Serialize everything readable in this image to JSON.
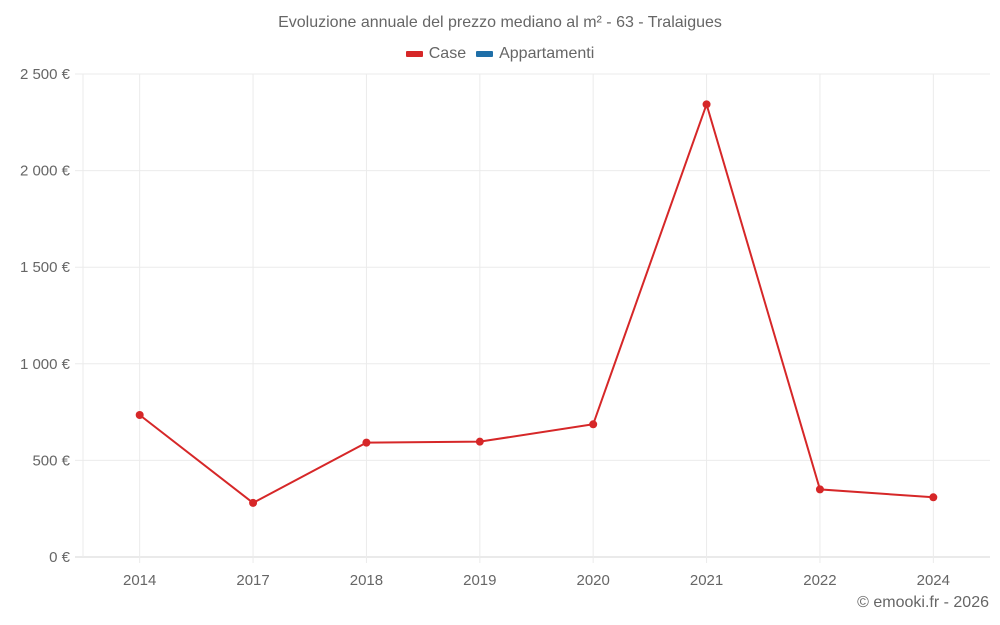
{
  "chart_data": {
    "type": "line",
    "title": "Evoluzione annuale del prezzo mediano al m² - 63 - Tralaigues",
    "categories": [
      "2014",
      "2017",
      "2018",
      "2019",
      "2020",
      "2021",
      "2022",
      "2024"
    ],
    "series": [
      {
        "name": "Case",
        "color": "#d62728",
        "values": [
          735,
          280,
          592,
          597,
          687,
          2343,
          350,
          309
        ]
      },
      {
        "name": "Appartamenti",
        "color": "#1f6fa8",
        "values": []
      }
    ],
    "xlabel": "",
    "ylabel": "",
    "ylim": [
      0,
      2500
    ],
    "yticks": [
      0,
      500,
      1000,
      1500,
      2000,
      2500
    ],
    "ytick_labels": [
      "0 €",
      "500 €",
      "1 000 €",
      "1 500 €",
      "2 000 €",
      "2 500 €"
    ],
    "grid": true,
    "legend_position": "top"
  },
  "title": "Evoluzione annuale del prezzo mediano al m² - 63 - Tralaigues",
  "legend": [
    {
      "label": "Case",
      "color": "#d62728"
    },
    {
      "label": "Appartamenti",
      "color": "#1f6fa8"
    }
  ],
  "footer": "© emooki.fr - 2026"
}
